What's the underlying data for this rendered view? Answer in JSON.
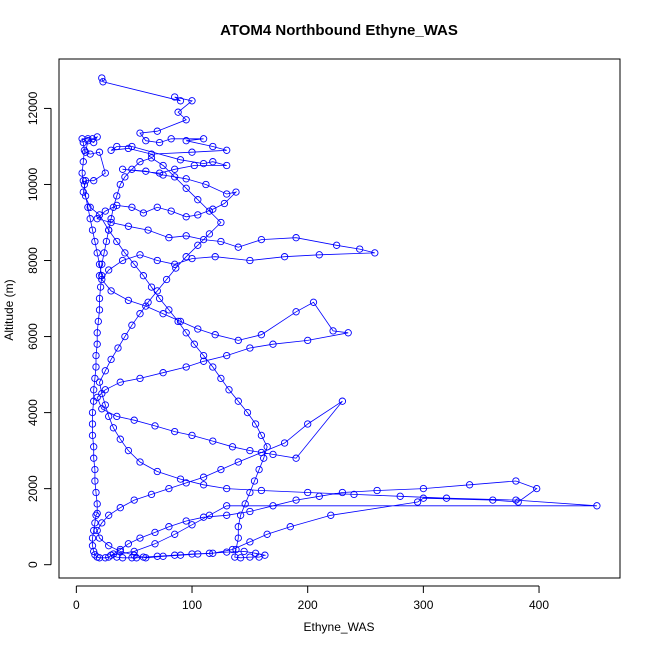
{
  "chart_data": {
    "type": "line",
    "title": "ATOM4 Northbound Ethyne_WAS",
    "xlabel": "Ethyne_WAS",
    "ylabel": "Altitude (m)",
    "xlim": [
      -15,
      470
    ],
    "ylim": [
      -350,
      13300
    ],
    "xticks": [
      0,
      100,
      200,
      300,
      400
    ],
    "yticks": [
      0,
      2000,
      4000,
      6000,
      8000,
      10000,
      12000
    ],
    "grid": false,
    "legend": "none",
    "series_color": "#0000ff",
    "marker": "open-circle",
    "series": [
      {
        "points": [
          [
            22,
            12800
          ],
          [
            23,
            12700
          ],
          [
            90,
            12200
          ],
          [
            85,
            12300
          ],
          [
            100,
            12200
          ],
          [
            88,
            11900
          ],
          [
            95,
            11700
          ],
          [
            70,
            11400
          ],
          [
            55,
            11350
          ],
          [
            60,
            11150
          ],
          [
            72,
            11100
          ],
          [
            82,
            11200
          ],
          [
            110,
            11200
          ],
          [
            95,
            11150
          ],
          [
            118,
            11000
          ],
          [
            130,
            10900
          ],
          [
            100,
            10850
          ],
          [
            65,
            10800
          ],
          [
            45,
            10950
          ],
          [
            30,
            10900
          ],
          [
            35,
            11000
          ],
          [
            48,
            11000
          ],
          [
            90,
            10650
          ],
          [
            110,
            10550
          ],
          [
            118,
            10600
          ],
          [
            130,
            10500
          ],
          [
            102,
            10500
          ],
          [
            85,
            10400
          ],
          [
            72,
            10300
          ],
          [
            40,
            10400
          ],
          [
            60,
            10350
          ],
          [
            75,
            10250
          ],
          [
            95,
            10150
          ],
          [
            112,
            10000
          ],
          [
            130,
            9750
          ],
          [
            138,
            9800
          ],
          [
            128,
            9500
          ],
          [
            118,
            9350
          ],
          [
            105,
            9200
          ],
          [
            95,
            9150
          ],
          [
            82,
            9300
          ],
          [
            70,
            9400
          ],
          [
            58,
            9250
          ],
          [
            48,
            9400
          ],
          [
            35,
            9450
          ],
          [
            25,
            9300
          ],
          [
            18,
            9100
          ],
          [
            30,
            9000
          ],
          [
            45,
            8900
          ],
          [
            62,
            8800
          ],
          [
            80,
            8600
          ],
          [
            95,
            8650
          ],
          [
            110,
            8550
          ],
          [
            125,
            8500
          ],
          [
            140,
            8350
          ],
          [
            160,
            8550
          ],
          [
            190,
            8600
          ],
          [
            225,
            8400
          ],
          [
            245,
            8300
          ],
          [
            258,
            8200
          ],
          [
            210,
            8150
          ],
          [
            180,
            8100
          ],
          [
            150,
            8000
          ],
          [
            120,
            8100
          ],
          [
            100,
            8050
          ],
          [
            85,
            7900
          ],
          [
            70,
            8000
          ],
          [
            55,
            8150
          ],
          [
            40,
            8000
          ],
          [
            28,
            7750
          ],
          [
            22,
            7500
          ],
          [
            30,
            7200
          ],
          [
            45,
            6950
          ],
          [
            60,
            6800
          ],
          [
            75,
            6600
          ],
          [
            90,
            6400
          ],
          [
            105,
            6200
          ],
          [
            120,
            6050
          ],
          [
            140,
            5900
          ],
          [
            160,
            6050
          ],
          [
            190,
            6650
          ],
          [
            205,
            6900
          ],
          [
            222,
            6150
          ],
          [
            235,
            6100
          ],
          [
            200,
            5900
          ],
          [
            170,
            5800
          ],
          [
            150,
            5700
          ],
          [
            130,
            5500
          ],
          [
            110,
            5350
          ],
          [
            95,
            5200
          ],
          [
            75,
            5050
          ],
          [
            55,
            4900
          ],
          [
            38,
            4800
          ],
          [
            25,
            4600
          ],
          [
            18,
            4400
          ],
          [
            22,
            4100
          ],
          [
            35,
            3900
          ],
          [
            50,
            3800
          ],
          [
            68,
            3650
          ],
          [
            85,
            3500
          ],
          [
            100,
            3400
          ],
          [
            118,
            3250
          ],
          [
            135,
            3100
          ],
          [
            150,
            3000
          ],
          [
            170,
            2900
          ],
          [
            190,
            2800
          ],
          [
            230,
            4300
          ],
          [
            200,
            3700
          ],
          [
            180,
            3200
          ],
          [
            160,
            2950
          ],
          [
            140,
            2700
          ],
          [
            125,
            2500
          ],
          [
            110,
            2300
          ],
          [
            95,
            2150
          ],
          [
            80,
            2000
          ],
          [
            65,
            1850
          ],
          [
            50,
            1700
          ],
          [
            38,
            1500
          ],
          [
            28,
            1300
          ],
          [
            22,
            1100
          ],
          [
            18,
            900
          ],
          [
            20,
            700
          ],
          [
            28,
            500
          ],
          [
            38,
            350
          ],
          [
            50,
            250
          ],
          [
            60,
            180
          ],
          [
            75,
            220
          ],
          [
            90,
            250
          ],
          [
            105,
            280
          ],
          [
            118,
            300
          ],
          [
            135,
            400
          ],
          [
            150,
            600
          ],
          [
            165,
            800
          ],
          [
            185,
            1000
          ],
          [
            220,
            1300
          ],
          [
            295,
            1650
          ],
          [
            300,
            1750
          ],
          [
            360,
            1700
          ],
          [
            382,
            1650
          ],
          [
            398,
            2000
          ],
          [
            380,
            2200
          ],
          [
            340,
            2100
          ],
          [
            300,
            2000
          ],
          [
            260,
            1950
          ],
          [
            230,
            1900
          ],
          [
            210,
            1800
          ],
          [
            190,
            1700
          ],
          [
            170,
            1550
          ],
          [
            150,
            1400
          ],
          [
            130,
            1300
          ],
          [
            110,
            1250
          ],
          [
            95,
            1150
          ],
          [
            80,
            1000
          ],
          [
            68,
            850
          ],
          [
            55,
            700
          ],
          [
            45,
            550
          ],
          [
            38,
            400
          ],
          [
            32,
            280
          ],
          [
            28,
            200
          ],
          [
            25,
            180
          ],
          [
            20,
            180
          ],
          [
            18,
            200
          ],
          [
            16,
            260
          ],
          [
            15,
            350
          ],
          [
            14,
            500
          ],
          [
            14,
            700
          ],
          [
            15,
            900
          ],
          [
            16,
            1100
          ],
          [
            17,
            1300
          ],
          [
            18,
            1350
          ],
          [
            18,
            1600
          ],
          [
            17,
            1900
          ],
          [
            16,
            2200
          ],
          [
            16,
            2500
          ],
          [
            15,
            2800
          ],
          [
            15,
            3100
          ],
          [
            14,
            3400
          ],
          [
            14,
            3700
          ],
          [
            14,
            4000
          ],
          [
            15,
            4300
          ],
          [
            15,
            4600
          ],
          [
            16,
            4900
          ],
          [
            17,
            5200
          ],
          [
            17,
            5500
          ],
          [
            18,
            5800
          ],
          [
            18,
            6100
          ],
          [
            19,
            6400
          ],
          [
            20,
            6700
          ],
          [
            20,
            7000
          ],
          [
            21,
            7300
          ],
          [
            22,
            7600
          ],
          [
            20,
            7900
          ],
          [
            18,
            8200
          ],
          [
            16,
            8500
          ],
          [
            14,
            8800
          ],
          [
            12,
            9100
          ],
          [
            10,
            9400
          ],
          [
            8,
            9700
          ],
          [
            7,
            10000
          ],
          [
            6,
            10100
          ],
          [
            5,
            10300
          ],
          [
            6,
            10600
          ],
          [
            7,
            10900
          ],
          [
            6,
            11100
          ],
          [
            5,
            11200
          ],
          [
            10,
            11200
          ],
          [
            15,
            11100
          ],
          [
            18,
            11250
          ],
          [
            14,
            11200
          ],
          [
            10,
            11150
          ],
          [
            8,
            10850
          ],
          [
            12,
            10800
          ],
          [
            20,
            10850
          ],
          [
            25,
            10300
          ],
          [
            15,
            10100
          ],
          [
            8,
            10100
          ],
          [
            6,
            9800
          ],
          [
            12,
            9400
          ],
          [
            20,
            9200
          ],
          [
            28,
            8800
          ],
          [
            35,
            8500
          ],
          [
            42,
            8200
          ],
          [
            50,
            7900
          ],
          [
            58,
            7600
          ],
          [
            65,
            7300
          ],
          [
            72,
            7000
          ],
          [
            80,
            6700
          ],
          [
            88,
            6400
          ],
          [
            95,
            6100
          ],
          [
            102,
            5800
          ],
          [
            110,
            5500
          ],
          [
            118,
            5200
          ],
          [
            125,
            4900
          ],
          [
            132,
            4600
          ],
          [
            140,
            4300
          ],
          [
            148,
            4000
          ],
          [
            155,
            3700
          ],
          [
            160,
            3400
          ],
          [
            165,
            3100
          ],
          [
            162,
            2800
          ],
          [
            158,
            2500
          ],
          [
            154,
            2200
          ],
          [
            150,
            1900
          ],
          [
            146,
            1600
          ],
          [
            142,
            1300
          ],
          [
            140,
            1000
          ],
          [
            140,
            700
          ],
          [
            138,
            400
          ],
          [
            137,
            200
          ],
          [
            142,
            180
          ],
          [
            150,
            200
          ],
          [
            158,
            200
          ],
          [
            163,
            250
          ],
          [
            155,
            300
          ],
          [
            145,
            350
          ],
          [
            130,
            330
          ],
          [
            115,
            300
          ],
          [
            100,
            280
          ],
          [
            85,
            250
          ],
          [
            70,
            220
          ],
          [
            58,
            200
          ],
          [
            52,
            180
          ],
          [
            48,
            180
          ],
          [
            40,
            180
          ],
          [
            35,
            200
          ],
          [
            30,
            250
          ],
          [
            50,
            350
          ],
          [
            68,
            550
          ],
          [
            85,
            800
          ],
          [
            100,
            1050
          ],
          [
            115,
            1300
          ],
          [
            130,
            1550
          ],
          [
            450,
            1550
          ],
          [
            380,
            1700
          ],
          [
            320,
            1750
          ],
          [
            280,
            1800
          ],
          [
            240,
            1850
          ],
          [
            200,
            1900
          ],
          [
            160,
            1950
          ],
          [
            130,
            2000
          ],
          [
            110,
            2100
          ],
          [
            90,
            2250
          ],
          [
            70,
            2450
          ],
          [
            55,
            2700
          ],
          [
            45,
            3000
          ],
          [
            38,
            3300
          ],
          [
            32,
            3600
          ],
          [
            28,
            3900
          ],
          [
            25,
            4200
          ],
          [
            22,
            4500
          ],
          [
            20,
            4800
          ],
          [
            25,
            5100
          ],
          [
            30,
            5400
          ],
          [
            36,
            5700
          ],
          [
            42,
            6000
          ],
          [
            48,
            6300
          ],
          [
            55,
            6600
          ],
          [
            62,
            6900
          ],
          [
            70,
            7200
          ],
          [
            78,
            7500
          ],
          [
            86,
            7800
          ],
          [
            95,
            8100
          ],
          [
            105,
            8400
          ],
          [
            115,
            8700
          ],
          [
            125,
            9000
          ],
          [
            115,
            9300
          ],
          [
            105,
            9600
          ],
          [
            95,
            9900
          ],
          [
            85,
            10200
          ],
          [
            75,
            10500
          ],
          [
            65,
            10700
          ],
          [
            55,
            10600
          ],
          [
            48,
            10400
          ],
          [
            42,
            10200
          ],
          [
            38,
            10000
          ],
          [
            35,
            9700
          ],
          [
            32,
            9400
          ],
          [
            30,
            9100
          ],
          [
            28,
            8800
          ],
          [
            26,
            8500
          ],
          [
            24,
            8200
          ],
          [
            22,
            7900
          ],
          [
            20,
            7600
          ]
        ]
      }
    ]
  }
}
